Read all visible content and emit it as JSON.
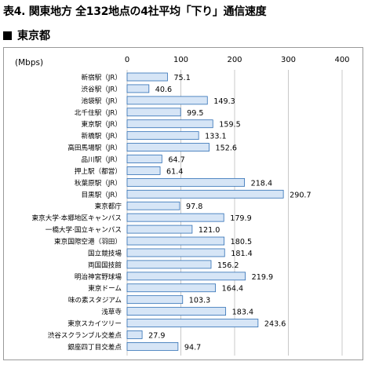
{
  "title": "表4. 関東地方 全132地点の4社平均「下り」通信速度",
  "subtitle": "東京都",
  "colors": {
    "bar_fill": "#d6e5f6",
    "bar_stroke": "#2f6fb5",
    "grid": "#c8c8c8"
  },
  "chart_data": {
    "type": "bar",
    "orientation": "horizontal",
    "title": "",
    "ylabel": "(Mbps)",
    "xlim": [
      0,
      400
    ],
    "xticks": [
      0,
      100,
      200,
      300,
      400
    ],
    "grid": true,
    "legend": "none",
    "categories": [
      "新宿駅（JR）",
      "渋谷駅（JR）",
      "池袋駅（JR）",
      "北千住駅（JR）",
      "東京駅（JR）",
      "新橋駅（JR）",
      "高田馬場駅（JR）",
      "品川駅（JR）",
      "押上駅（都営）",
      "秋葉原駅（JR）",
      "目黒駅（JR）",
      "東京都庁",
      "東京大学·本郷地区キャンパス",
      "一橋大学·国立キャンパス",
      "東京国際空港（羽田）",
      "国立競技場",
      "両国国技館",
      "明治神宮野球場",
      "東京ドーム",
      "味の素スタジアム",
      "浅草寺",
      "東京スカイツリー",
      "渋谷スクランブル交差点",
      "銀座四丁目交差点"
    ],
    "values": [
      75.1,
      40.6,
      149.3,
      99.5,
      159.5,
      133.1,
      152.6,
      64.7,
      61.4,
      218.4,
      290.7,
      97.8,
      179.9,
      121.0,
      180.5,
      181.4,
      156.2,
      219.9,
      164.4,
      103.3,
      183.4,
      243.6,
      27.9,
      94.7
    ],
    "value_labels": [
      "75.1",
      "40.6",
      "149.3",
      "99.5",
      "159.5",
      "133.1",
      "152.6",
      "64.7",
      "61.4",
      "218.4",
      "290.7",
      "97.8",
      "179.9",
      "121.0",
      "180.5",
      "181.4",
      "156.2",
      "219.9",
      "164.4",
      "103.3",
      "183.4",
      "243.6",
      "27.9",
      "94.7"
    ]
  }
}
